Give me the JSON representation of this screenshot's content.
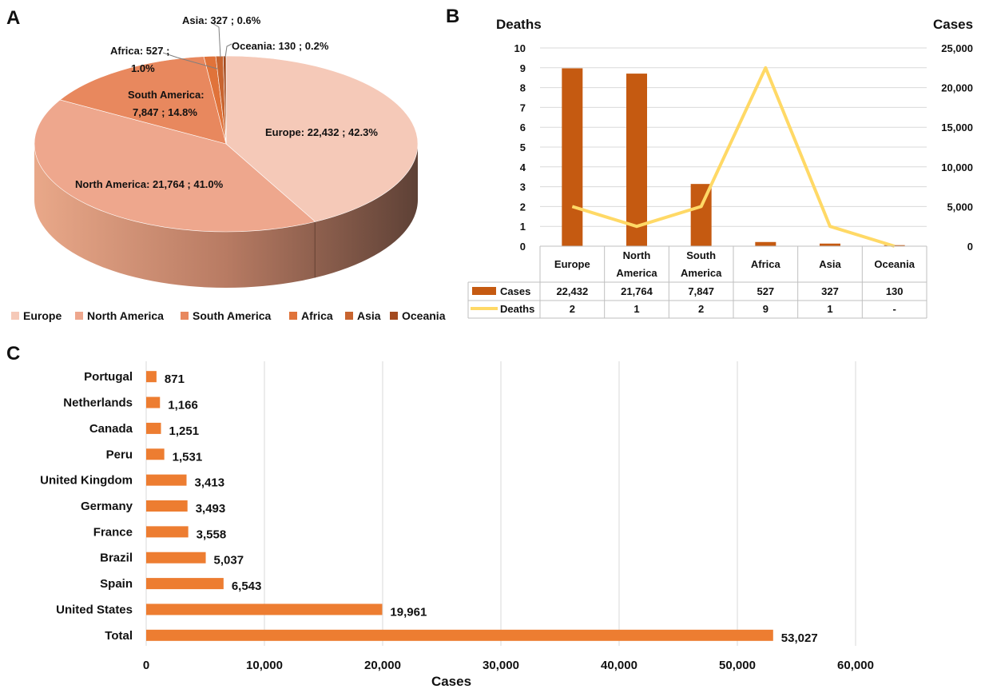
{
  "panels": {
    "a": "A",
    "b": "B",
    "c": "C"
  },
  "colors": {
    "pie": [
      "#f5c9b8",
      "#eea78d",
      "#e8885e",
      "#e0733a",
      "#c8642f",
      "#a34a1f"
    ],
    "bar_b": "#c55a11",
    "line_b": "#ffd966",
    "bar_c": "#ed7d31",
    "grid": "#d9d9d9"
  },
  "chart_data": [
    {
      "type": "pie",
      "categories": [
        "Europe",
        "North America",
        "South America",
        "Africa",
        "Asia",
        "Oceania"
      ],
      "values": [
        22432,
        21764,
        7847,
        527,
        327,
        130
      ],
      "percent": [
        "42.3%",
        "41.0%",
        "14.8%",
        "1.0%",
        "0.6%",
        "0.2%"
      ],
      "labels": {
        "Europe": "Europe:  22,432 ; 42.3%",
        "North America": "North America:  21,764 ; 41.0%",
        "South America": [
          "South America:",
          "7,847 ; 14.8%"
        ],
        "Africa": [
          "Africa:  527 ;",
          "1.0%"
        ],
        "Asia": "Asia:  327 ; 0.6%",
        "Oceania": "Oceania:  130 ; 0.2%"
      },
      "legend_position": "bottom",
      "style": "3d"
    },
    {
      "type": "bar",
      "categories": [
        "Europe",
        "North America",
        "South America",
        "Africa",
        "Asia",
        "Oceania"
      ],
      "category_lines": [
        [
          "Europe"
        ],
        [
          "North",
          "America"
        ],
        [
          "South",
          "America"
        ],
        [
          "Africa"
        ],
        [
          "Asia"
        ],
        [
          "Oceania"
        ]
      ],
      "series": [
        {
          "name": "Cases",
          "type": "bar",
          "axis": "right",
          "values": [
            22432,
            21764,
            7847,
            527,
            327,
            130
          ],
          "display": [
            "22,432",
            "21,764",
            "7,847",
            "527",
            "327",
            "130"
          ]
        },
        {
          "name": "Deaths",
          "type": "line",
          "axis": "left",
          "values": [
            2,
            1,
            2,
            9,
            1,
            0
          ],
          "display": [
            "2",
            "1",
            "2",
            "9",
            "1",
            "-"
          ]
        }
      ],
      "ylabel_left": "Deaths",
      "ylabel_right": "Cases",
      "ylim_left": [
        0,
        10
      ],
      "ylim_right": [
        0,
        25000
      ],
      "yticks_left": [
        "0",
        "1",
        "2",
        "3",
        "4",
        "5",
        "6",
        "7",
        "8",
        "9",
        "10"
      ],
      "yticks_right": [
        "0",
        "5,000",
        "10,000",
        "15,000",
        "20,000",
        "25,000"
      ],
      "data_table": true,
      "grid": true
    },
    {
      "type": "bar",
      "orientation": "horizontal",
      "categories": [
        "Portugal",
        "Netherlands",
        "Canada",
        "Peru",
        "United Kingdom",
        "Germany",
        "France",
        "Brazil",
        "Spain",
        "United States",
        "Total"
      ],
      "values": [
        871,
        1166,
        1251,
        1531,
        3413,
        3493,
        3558,
        5037,
        6543,
        19961,
        53027
      ],
      "value_labels": [
        "871",
        "1,166",
        "1,251",
        "1,531",
        "3,413",
        "3,493",
        "3,558",
        "5,037",
        "6,543",
        "19,961",
        "53,027"
      ],
      "xlabel": "Cases",
      "xlim": [
        0,
        60000
      ],
      "xticks": [
        "0",
        "10,000",
        "20,000",
        "30,000",
        "40,000",
        "50,000",
        "60,000"
      ],
      "grid": true
    }
  ]
}
